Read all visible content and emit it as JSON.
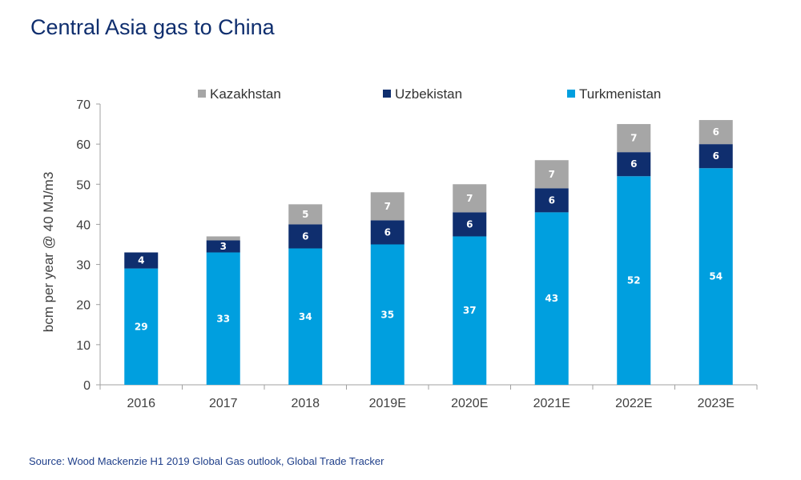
{
  "title": "Central Asia gas to China",
  "source": "Source: Wood Mackenzie H1 2019 Global Gas outlook, Global Trade Tracker",
  "chart_data": {
    "type": "bar",
    "stacked": true,
    "categories": [
      "2016",
      "2017",
      "2018",
      "2019E",
      "2020E",
      "2021E",
      "2022E",
      "2023E"
    ],
    "series": [
      {
        "name": "Turkmenistan",
        "color": "#009fdf",
        "values": [
          29,
          33,
          34,
          35,
          37,
          43,
          52,
          54
        ]
      },
      {
        "name": "Uzbekistan",
        "color": "#0f2e6e",
        "values": [
          4,
          3,
          6,
          6,
          6,
          6,
          6,
          6
        ]
      },
      {
        "name": "Kazakhstan",
        "color": "#a6a6a6",
        "values": [
          0,
          1,
          5,
          7,
          7,
          7,
          7,
          6
        ]
      }
    ],
    "value_labels": [
      {
        "series": "Turkmenistan",
        "labels": [
          "29",
          "33",
          "34",
          "35",
          "37",
          "43",
          "52",
          "54"
        ]
      },
      {
        "series": "Uzbekistan",
        "labels": [
          "4",
          "3",
          "6",
          "6",
          "6",
          "6",
          "6",
          "6"
        ]
      },
      {
        "series": "Kazakhstan",
        "labels": [
          "",
          "",
          "5",
          "7",
          "7",
          "7",
          "7",
          "6"
        ]
      }
    ],
    "legend_order": [
      "Kazakhstan",
      "Uzbekistan",
      "Turkmenistan"
    ],
    "legend_position": "top",
    "ylabel": "bcm per year @ 40 MJ/m3",
    "xlabel": "",
    "ylim": [
      0,
      70
    ],
    "yticks": [
      "0",
      "10",
      "20",
      "30",
      "40",
      "50",
      "60",
      "70"
    ],
    "grid": false
  }
}
